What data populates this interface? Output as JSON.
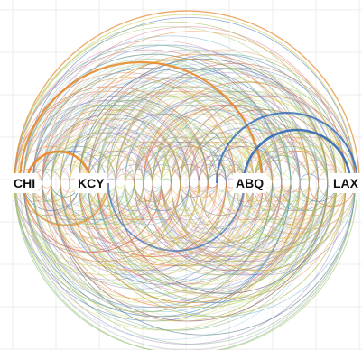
{
  "diagram": {
    "nodes": [
      {
        "id": "chi",
        "label": "CHI"
      },
      {
        "id": "kcy",
        "label": "KCY"
      },
      {
        "id": "abq",
        "label": "ABQ"
      },
      {
        "id": "lax",
        "label": "LAX"
      }
    ],
    "palette": [
      "#e8892a",
      "#3a6fb5",
      "#e07a9a",
      "#9bc86a",
      "#c9c23a",
      "#9a7cc4",
      "#e46a4a",
      "#6ab6c9",
      "#d6a75a",
      "#b9b9b9",
      "#7fb07f",
      "#d4d44a"
    ],
    "highlight_colors": {
      "orange": "#e8892a",
      "blue": "#3a6fb5"
    }
  }
}
